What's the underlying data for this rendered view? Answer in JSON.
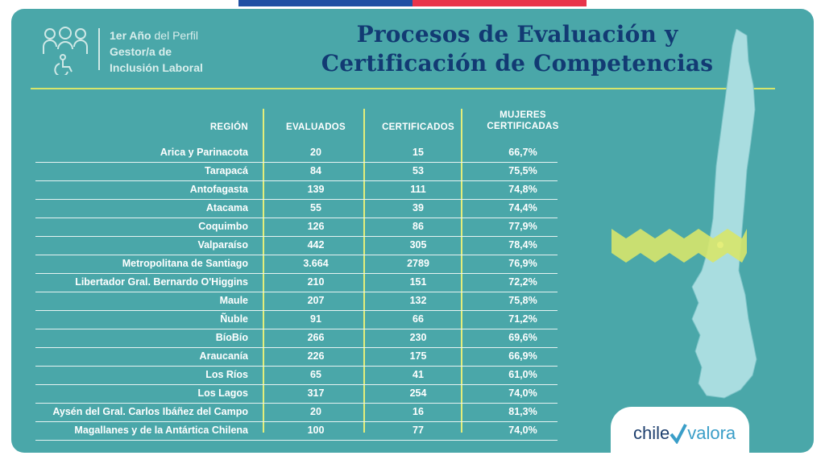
{
  "logo": {
    "line1_bold": "1er Año",
    "line1_rest": " del Perfil",
    "line2": "Gestor/a de",
    "line3": "Inclusión Laboral"
  },
  "title": {
    "line1": "Procesos de Evaluación y",
    "line2": "Certificación de Competencias"
  },
  "table": {
    "headers": {
      "region": "REGIÓN",
      "evaluados": "EVALUADOS",
      "certificados": "CERTIFICADOS",
      "mujeres_1": "MUJERES",
      "mujeres_2": "CERTIFICADAS"
    },
    "rows": [
      {
        "region": "Arica y Parinacota",
        "evaluados": "20",
        "certificados": "15",
        "mujeres": "66,7%"
      },
      {
        "region": "Tarapacá",
        "evaluados": "84",
        "certificados": "53",
        "mujeres": "75,5%"
      },
      {
        "region": "Antofagasta",
        "evaluados": "139",
        "certificados": "111",
        "mujeres": "74,8%"
      },
      {
        "region": "Atacama",
        "evaluados": "55",
        "certificados": "39",
        "mujeres": "74,4%"
      },
      {
        "region": "Coquimbo",
        "evaluados": "126",
        "certificados": "86",
        "mujeres": "77,9%"
      },
      {
        "region": "Valparaíso",
        "evaluados": "442",
        "certificados": "305",
        "mujeres": "78,4%"
      },
      {
        "region": "Metropolitana de Santiago",
        "evaluados": "3.664",
        "certificados": "2789",
        "mujeres": "76,9%"
      },
      {
        "region": "Libertador Gral. Bernardo O'Higgins",
        "evaluados": "210",
        "certificados": "151",
        "mujeres": "72,2%"
      },
      {
        "region": "Maule",
        "evaluados": "207",
        "certificados": "132",
        "mujeres": "75,8%"
      },
      {
        "region": "Ñuble",
        "evaluados": "91",
        "certificados": "66",
        "mujeres": "71,2%"
      },
      {
        "region": "BíoBío",
        "evaluados": "266",
        "certificados": "230",
        "mujeres": "69,6%"
      },
      {
        "region": "Araucanía",
        "evaluados": "226",
        "certificados": "175",
        "mujeres": "66,9%"
      },
      {
        "region": "Los Ríos",
        "evaluados": "65",
        "certificados": "41",
        "mujeres": "61,0%"
      },
      {
        "region": "Los Lagos",
        "evaluados": "317",
        "certificados": "254",
        "mujeres": "74,0%"
      },
      {
        "region": "Aysén del Gral. Carlos Ibáñez del Campo",
        "evaluados": "20",
        "certificados": "16",
        "mujeres": "81,3%"
      },
      {
        "region": "Magallanes y de la Antártica Chilena",
        "evaluados": "100",
        "certificados": "77",
        "mujeres": "74,0%"
      }
    ]
  },
  "brand": {
    "chile": "chile",
    "valora": "valora"
  },
  "colors": {
    "background": "#4aa7a9",
    "title": "#123a73",
    "accent_line": "#d7e56a",
    "map_fill": "#a9dde0",
    "flag_blue": "#1f4fa3",
    "flag_red": "#e8344a"
  },
  "icons": [
    "people-group-icon",
    "wheelchair-icon",
    "chile-map-icon",
    "checkmark-icon"
  ]
}
